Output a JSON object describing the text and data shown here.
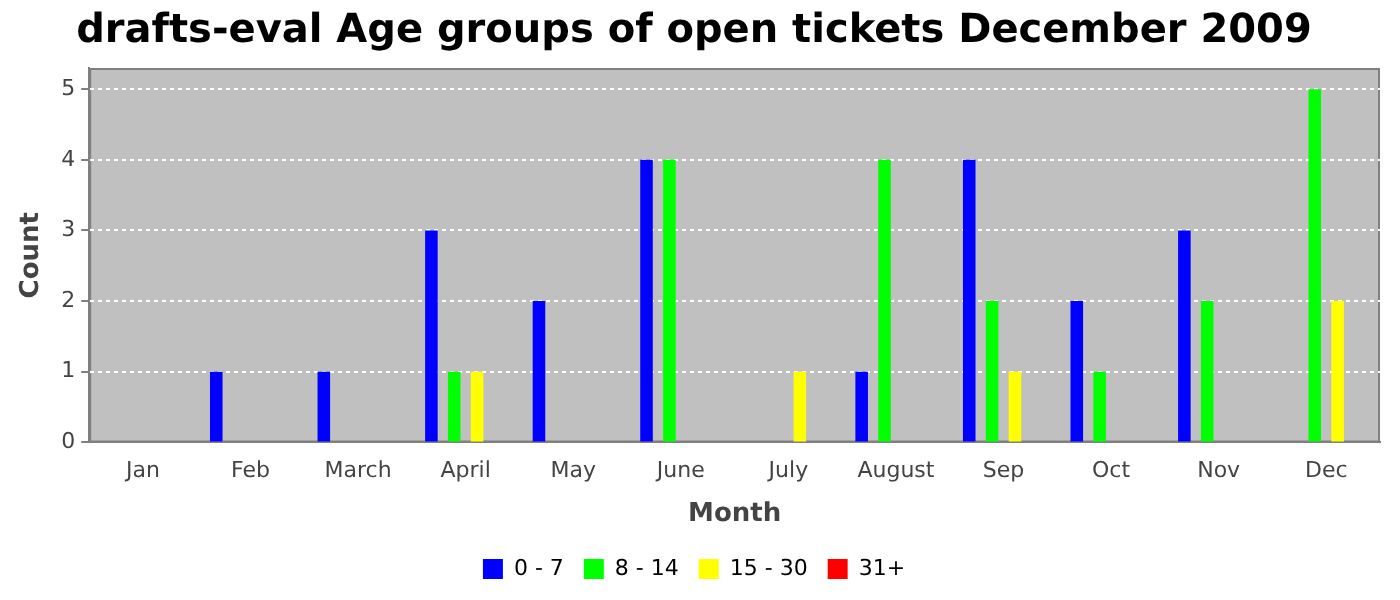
{
  "chart_data": {
    "type": "bar",
    "title": "drafts-eval Age groups of open tickets December 2009",
    "xlabel": "Month",
    "ylabel": "Count",
    "categories": [
      "Jan",
      "Feb",
      "March",
      "April",
      "May",
      "June",
      "July",
      "August",
      "Sep",
      "Oct",
      "Nov",
      "Dec"
    ],
    "series": [
      {
        "name": "0 - 7",
        "color": "#0000ff",
        "values": [
          0,
          1,
          1,
          3,
          2,
          4,
          0,
          1,
          4,
          2,
          3,
          0
        ]
      },
      {
        "name": "8 - 14",
        "color": "#00ff00",
        "values": [
          0,
          0,
          0,
          1,
          0,
          4,
          0,
          4,
          2,
          1,
          2,
          5
        ]
      },
      {
        "name": "15 - 30",
        "color": "#ffff00",
        "values": [
          0,
          0,
          0,
          1,
          0,
          0,
          1,
          0,
          1,
          0,
          0,
          2
        ]
      },
      {
        "name": "31+",
        "color": "#ff0000",
        "values": [
          0,
          0,
          0,
          0,
          0,
          0,
          0,
          0,
          0,
          0,
          0,
          0
        ]
      }
    ],
    "ylim": [
      0,
      5.3
    ],
    "yticks": [
      0,
      1,
      2,
      3,
      4,
      5
    ],
    "grid": "y",
    "legend": "bottom"
  }
}
